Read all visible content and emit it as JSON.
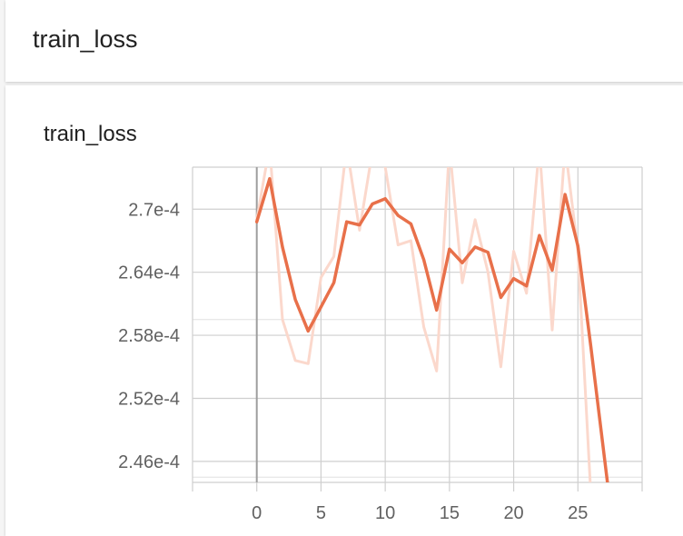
{
  "header": {
    "title": "train_loss"
  },
  "card": {
    "title": "train_loss"
  },
  "colors": {
    "smoothed": "#e8704a",
    "raw": "#fbd8cc",
    "grid": "#cfcfcf",
    "axis": "#9e9e9e"
  },
  "chart_data": {
    "type": "line",
    "title": "train_loss",
    "xlim": [
      -5,
      30
    ],
    "ylim": [
      0.000244,
      0.000274
    ],
    "x_ticks": [
      0,
      5,
      10,
      15,
      20,
      25
    ],
    "x_tick_labels": [
      "0",
      "5",
      "10",
      "15",
      "20",
      "25"
    ],
    "y_ticks": [
      0.000246,
      0.000252,
      0.000258,
      0.000264,
      0.00027
    ],
    "y_tick_labels": [
      "2.46e-4",
      "2.52e-4",
      "2.58e-4",
      "2.64e-4",
      "2.7e-4"
    ],
    "grid": true,
    "series": [
      {
        "role": "raw",
        "x": [
          0,
          1,
          2,
          3,
          4,
          5,
          6,
          7,
          8,
          9,
          10,
          11,
          12,
          13,
          14,
          15,
          16,
          17,
          18,
          19,
          20,
          21,
          22,
          23,
          24,
          25,
          26
        ],
        "y": [
          0.000269,
          0.000276,
          0.0002595,
          0.0002556,
          0.0002553,
          0.0002635,
          0.0002655,
          0.000276,
          0.000268,
          0.0002755,
          0.000274,
          0.0002666,
          0.000267,
          0.0002588,
          0.0002546,
          0.000276,
          0.000263,
          0.000269,
          0.000264,
          0.000255,
          0.000266,
          0.000262,
          0.000276,
          0.0002585,
          0.000276,
          0.000266,
          0.000243
        ]
      },
      {
        "role": "smoothed",
        "x": [
          0,
          1,
          2,
          3,
          4,
          5,
          6,
          7,
          8,
          9,
          10,
          11,
          12,
          13,
          14,
          15,
          16,
          17,
          18,
          19,
          20,
          21,
          22,
          23,
          24,
          25,
          26,
          27.3
        ],
        "y": [
          0.0002688,
          0.0002729,
          0.0002664,
          0.0002614,
          0.0002584,
          0.0002607,
          0.000263,
          0.0002688,
          0.0002685,
          0.0002705,
          0.000271,
          0.0002694,
          0.0002686,
          0.0002652,
          0.0002604,
          0.0002662,
          0.0002649,
          0.0002664,
          0.0002659,
          0.0002616,
          0.0002634,
          0.0002627,
          0.0002675,
          0.0002642,
          0.0002714,
          0.0002665,
          0.000257,
          0.000244
        ]
      }
    ]
  }
}
